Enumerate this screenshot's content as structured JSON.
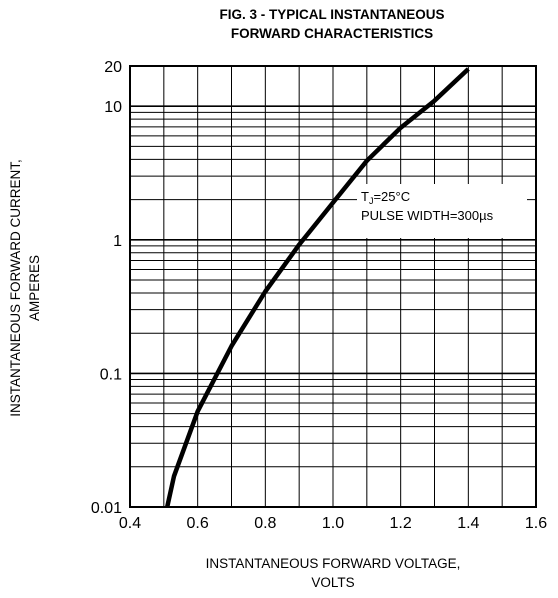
{
  "chart_data": {
    "type": "line",
    "title_line1": "FIG. 3 - TYPICAL INSTANTANEOUS",
    "title_line2": "FORWARD CHARACTERISTICS",
    "xlabel_line1": "INSTANTANEOUS FORWARD VOLTAGE,",
    "xlabel_line2": "VOLTS",
    "ylabel_line1": "INSTANTANEOUS FORWARD CURRENT,",
    "ylabel_line2": "AMPERES",
    "x_scale": "linear",
    "y_scale": "log",
    "xlim": [
      0.4,
      1.6
    ],
    "ylim": [
      0.01,
      20
    ],
    "x_ticks": [
      "0.4",
      "0.6",
      "0.8",
      "1.0",
      "1.2",
      "1.4",
      "1.6"
    ],
    "y_ticks": [
      "0.01",
      "0.1",
      "1",
      "10",
      "20"
    ],
    "grid": true,
    "annotation": {
      "line1_prefix": "T",
      "line1_sub": "J",
      "line1_suffix": "=25°C",
      "line2": "PULSE WIDTH=300µs"
    },
    "series": [
      {
        "x": [
          0.51,
          0.53,
          0.6,
          0.7,
          0.8,
          0.9,
          1.0,
          1.1,
          1.2,
          1.3,
          1.4
        ],
        "y": [
          0.01,
          0.017,
          0.052,
          0.16,
          0.41,
          0.92,
          1.9,
          3.9,
          6.9,
          11,
          19
        ]
      }
    ]
  }
}
